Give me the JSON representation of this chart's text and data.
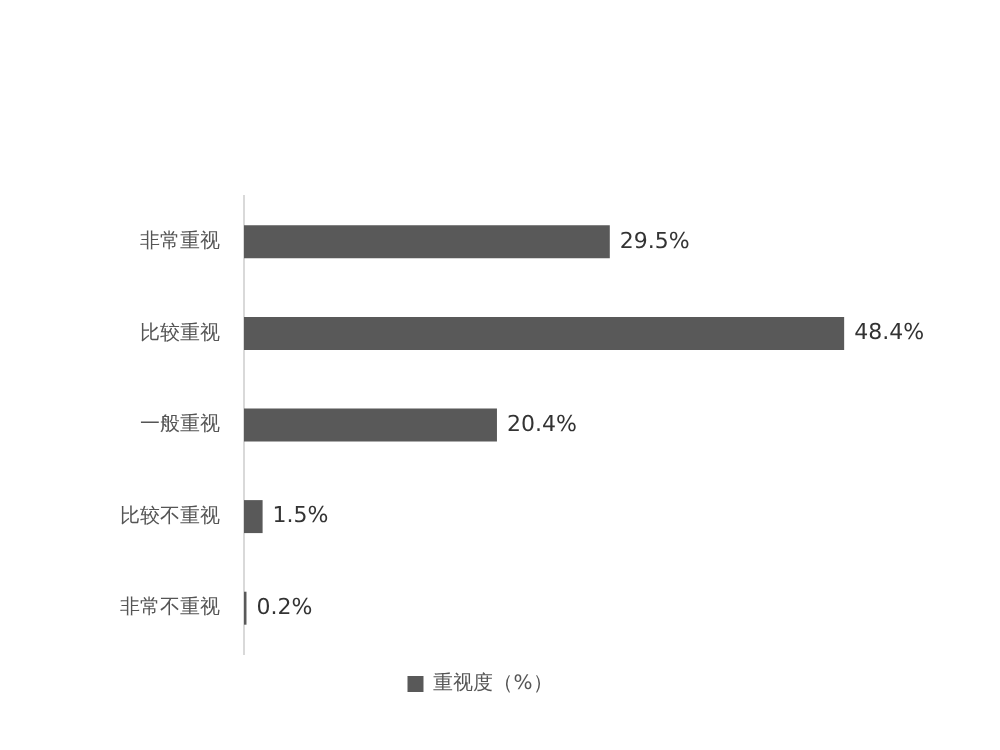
{
  "chart_data": {
    "type": "bar",
    "orientation": "horizontal",
    "categories": [
      "非常重视",
      "比较重视",
      "一般重视",
      "比较不重视",
      "非常不重视"
    ],
    "series": [
      {
        "name": "重视度（%）",
        "color": "#595959",
        "values": [
          29.5,
          48.4,
          20.4,
          1.5,
          0.2
        ],
        "value_labels": [
          "29.5%",
          "48.4%",
          "20.4%",
          "1.5%",
          "0.2%"
        ]
      }
    ],
    "tick_labels": "y",
    "grid": false,
    "legend": "bottom"
  }
}
